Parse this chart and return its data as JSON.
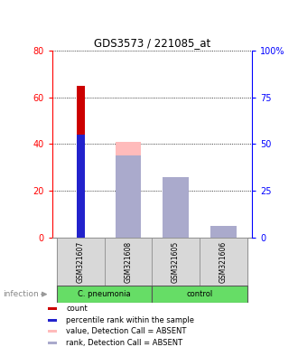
{
  "title": "GDS3573 / 221085_at",
  "samples": [
    "GSM321607",
    "GSM321608",
    "GSM321605",
    "GSM321606"
  ],
  "ylim_left": [
    0,
    80
  ],
  "ylim_right": [
    0,
    100
  ],
  "yticks_left": [
    0,
    20,
    40,
    60,
    80
  ],
  "yticks_right": [
    0,
    25,
    50,
    75,
    100
  ],
  "yticklabels_right": [
    "0",
    "25",
    "50",
    "75",
    "100%"
  ],
  "count_values": [
    65,
    0,
    0,
    0
  ],
  "count_color": "#cc0000",
  "percentile_values": [
    44,
    0,
    0,
    0
  ],
  "percentile_color": "#2222cc",
  "absent_value_values": [
    0,
    41,
    26,
    2
  ],
  "absent_value_color": "#ffbbbb",
  "absent_rank_values": [
    0,
    35,
    26,
    5
  ],
  "absent_rank_color": "#aaaacc",
  "bg_color": "#d8d8d8",
  "plot_bg": "#ffffff",
  "group1_label": "C. pneumonia",
  "group2_label": "control",
  "green_color": "#66dd66",
  "infection_label": "infection",
  "legend_items": [
    {
      "label": "count",
      "color": "#cc0000"
    },
    {
      "label": "percentile rank within the sample",
      "color": "#2222cc"
    },
    {
      "label": "value, Detection Call = ABSENT",
      "color": "#ffbbbb"
    },
    {
      "label": "rank, Detection Call = ABSENT",
      "color": "#aaaacc"
    }
  ]
}
